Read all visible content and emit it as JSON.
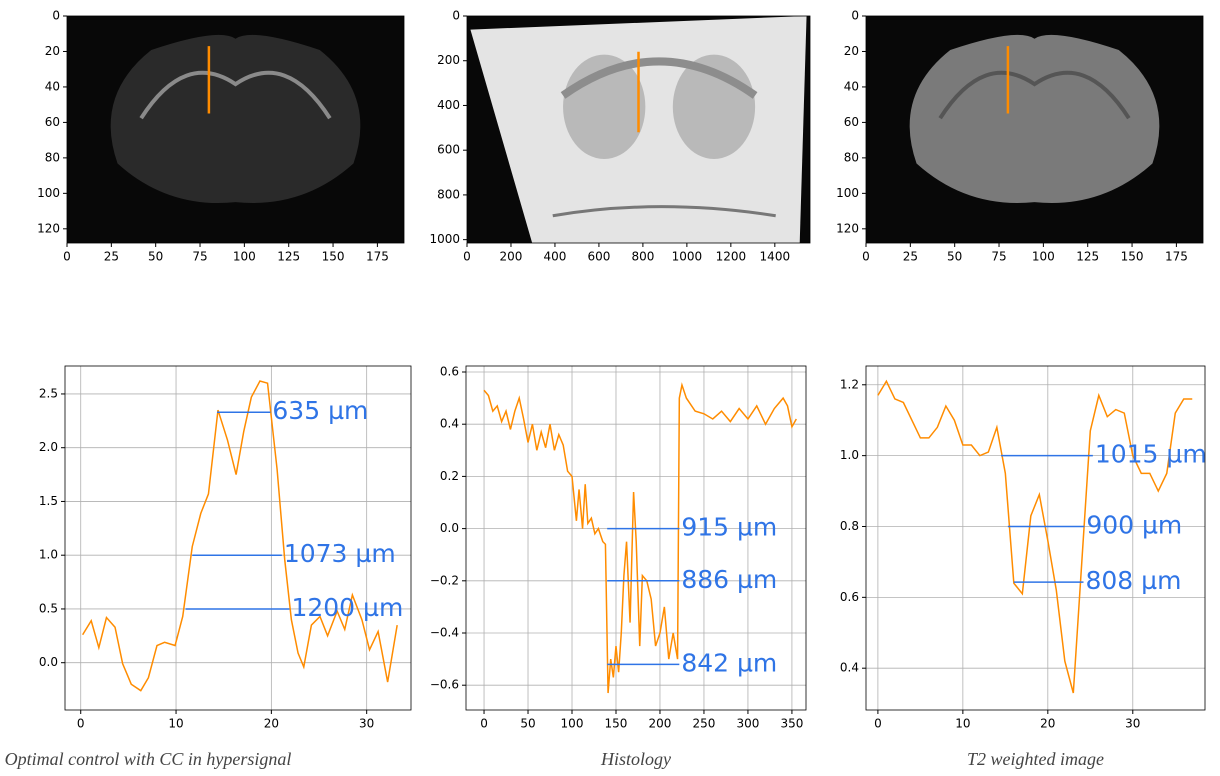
{
  "chart_data": [
    {
      "type": "image",
      "xlim": [
        0,
        190
      ],
      "ylim": [
        128,
        0
      ],
      "xticks": [
        0,
        25,
        50,
        75,
        100,
        125,
        150,
        175
      ],
      "yticks": [
        0,
        20,
        40,
        60,
        80,
        100,
        120
      ],
      "profile": {
        "x": [
          80,
          80
        ],
        "y": [
          17,
          55
        ],
        "color": "#ff8c00"
      }
    },
    {
      "type": "image",
      "xlim": [
        0,
        1560
      ],
      "ylim": [
        1015,
        0
      ],
      "xticks": [
        0,
        200,
        400,
        600,
        800,
        1000,
        1200,
        1400
      ],
      "yticks": [
        0,
        200,
        400,
        600,
        800,
        1000
      ],
      "profile": {
        "x": [
          780,
          780
        ],
        "y": [
          160,
          520
        ],
        "color": "#ff8c00"
      }
    },
    {
      "type": "image",
      "xlim": [
        0,
        190
      ],
      "ylim": [
        128,
        0
      ],
      "xticks": [
        0,
        25,
        50,
        75,
        100,
        125,
        150,
        175
      ],
      "yticks": [
        0,
        20,
        40,
        60,
        80,
        100,
        120
      ],
      "profile": {
        "x": [
          80,
          80
        ],
        "y": [
          17,
          55
        ],
        "color": "#ff8c00"
      }
    },
    {
      "type": "line",
      "caption": "Optimal control with  CC in hypersignal",
      "color": "#ff8c00",
      "annotation_color": "#2f74e6",
      "grid": true,
      "xlim": [
        -1.65,
        34.65
      ],
      "ylim": [
        -0.44,
        2.76
      ],
      "xticks": [
        0,
        10,
        20,
        30
      ],
      "yticks": [
        {
          "value": 0,
          "label": "0.0"
        },
        0.5,
        {
          "value": 1,
          "label": "1.0"
        },
        1.5,
        {
          "value": 2,
          "label": "2.0"
        },
        2.5
      ],
      "x": [
        0.2,
        1.1,
        1.9,
        2.7,
        3.6,
        4.4,
        5.3,
        6.3,
        7.1,
        8.0,
        8.8,
        9.9,
        10.7,
        11.7,
        12.6,
        13.4,
        14.4,
        15.4,
        16.3,
        17.1,
        17.9,
        18.8,
        19.6,
        20.6,
        21.4,
        22.1,
        22.8,
        23.4,
        24.2,
        25.1,
        25.9,
        26.9,
        27.7,
        28.5,
        29.5,
        30.3,
        31.2,
        32.2,
        33.2
      ],
      "values": [
        0.26,
        0.39,
        0.14,
        0.42,
        0.33,
        -0.01,
        -0.2,
        -0.26,
        -0.14,
        0.16,
        0.19,
        0.16,
        0.43,
        1.08,
        1.39,
        1.57,
        2.35,
        2.07,
        1.75,
        2.15,
        2.47,
        2.62,
        2.6,
        1.8,
        0.96,
        0.4,
        0.09,
        -0.04,
        0.35,
        0.43,
        0.25,
        0.48,
        0.31,
        0.63,
        0.4,
        0.12,
        0.29,
        -0.18,
        0.35
      ],
      "annotations": [
        {
          "y": 2.33,
          "x": [
            14.3,
            19.9
          ],
          "label": "635 µm"
        },
        {
          "y": 1.0,
          "x": [
            11.7,
            21.1
          ],
          "label": "1073 µm"
        },
        {
          "y": 0.5,
          "x": [
            11.0,
            21.9
          ],
          "label": "1200 µm"
        }
      ]
    },
    {
      "type": "line",
      "caption": "Histology",
      "color": "#ff8c00",
      "annotation_color": "#2f74e6",
      "grid": true,
      "xlim": [
        -20.5,
        366
      ],
      "ylim": [
        -0.695,
        0.623
      ],
      "xticks": [
        0,
        50,
        100,
        150,
        200,
        250,
        300,
        350
      ],
      "yticks": [
        {
          "value": -0.6,
          "label": "−0.6"
        },
        {
          "value": -0.4,
          "label": "−0.4"
        },
        {
          "value": -0.2,
          "label": "−0.2"
        },
        {
          "value": 0,
          "label": "0.0"
        },
        0.2,
        0.4,
        0.6
      ],
      "x": [
        0,
        5,
        10,
        15,
        20,
        25,
        30,
        35,
        40,
        45,
        50,
        55,
        60,
        65,
        70,
        75,
        80,
        85,
        90,
        95,
        100,
        105,
        108,
        112,
        115,
        118,
        122,
        126,
        130,
        135,
        138,
        141,
        144,
        147,
        150,
        153,
        156,
        159,
        162,
        166,
        170,
        173,
        177,
        180,
        185,
        190,
        195,
        200,
        205,
        210,
        215,
        220,
        222,
        225,
        230,
        240,
        250,
        260,
        270,
        280,
        290,
        300,
        310,
        320,
        330,
        340,
        345,
        350,
        355
      ],
      "values": [
        0.53,
        0.51,
        0.45,
        0.47,
        0.41,
        0.45,
        0.38,
        0.45,
        0.5,
        0.42,
        0.33,
        0.4,
        0.3,
        0.37,
        0.31,
        0.4,
        0.3,
        0.36,
        0.32,
        0.22,
        0.2,
        0.03,
        0.15,
        0.0,
        0.17,
        0.02,
        0.04,
        -0.02,
        0.0,
        -0.05,
        -0.06,
        -0.63,
        -0.5,
        -0.57,
        -0.45,
        -0.55,
        -0.4,
        -0.18,
        -0.05,
        -0.36,
        0.14,
        -0.05,
        -0.45,
        -0.18,
        -0.2,
        -0.27,
        -0.45,
        -0.4,
        -0.3,
        -0.5,
        -0.4,
        -0.5,
        0.5,
        0.55,
        0.5,
        0.45,
        0.44,
        0.42,
        0.45,
        0.41,
        0.46,
        0.42,
        0.47,
        0.4,
        0.46,
        0.5,
        0.47,
        0.39,
        0.42
      ],
      "annotations": [
        {
          "y": 0.0,
          "x": [
            140,
            222
          ],
          "label": "915 µm"
        },
        {
          "y": -0.2,
          "x": [
            140,
            222
          ],
          "label": "886 µm"
        },
        {
          "y": -0.52,
          "x": [
            140,
            222
          ],
          "label": "842 µm"
        }
      ]
    },
    {
      "type": "line",
      "caption": "T2 weighted image",
      "color": "#ff8c00",
      "annotation_color": "#2f74e6",
      "grid": true,
      "xlim": [
        -1.4,
        38.5
      ],
      "ylim": [
        0.282,
        1.253
      ],
      "xticks": [
        0,
        10,
        20,
        30
      ],
      "yticks": [
        0.4,
        0.6,
        0.8,
        {
          "value": 1,
          "label": "1.0"
        },
        1.2
      ],
      "x": [
        0,
        1,
        2,
        3,
        4,
        5,
        6,
        7,
        8,
        9,
        10,
        11,
        12,
        13,
        14,
        15,
        16,
        17,
        18,
        19,
        20,
        21,
        22,
        23,
        24,
        25,
        26,
        27,
        28,
        29,
        30,
        31,
        32,
        33,
        34,
        35,
        36,
        37
      ],
      "values": [
        1.17,
        1.21,
        1.16,
        1.15,
        1.1,
        1.05,
        1.05,
        1.08,
        1.14,
        1.1,
        1.03,
        1.03,
        1.0,
        1.01,
        1.08,
        0.95,
        0.64,
        0.61,
        0.83,
        0.89,
        0.76,
        0.62,
        0.42,
        0.33,
        0.7,
        1.07,
        1.17,
        1.11,
        1.13,
        1.12,
        1.0,
        0.95,
        0.95,
        0.9,
        0.95,
        1.12,
        1.16,
        1.16
      ],
      "annotations": [
        {
          "y": 1.0,
          "x": [
            14.5,
            25.3
          ],
          "label": "1015 µm"
        },
        {
          "y": 0.8,
          "x": [
            15.3,
            24.3
          ],
          "label": "900 µm"
        },
        {
          "y": 0.643,
          "x": [
            16,
            24.2
          ],
          "label": "808 µm"
        }
      ]
    }
  ]
}
